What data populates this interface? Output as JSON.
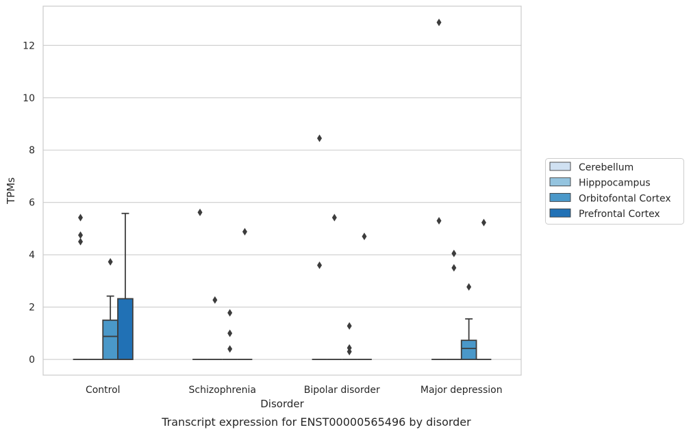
{
  "chart_data": {
    "type": "box",
    "caption": "Transcript expression for ENST00000565496 by disorder",
    "xlabel": "Disorder",
    "ylabel": "TPMs",
    "ylim": [
      -0.6,
      13.5
    ],
    "yticks": [
      0,
      2,
      4,
      6,
      8,
      10,
      12
    ],
    "grid": true,
    "legend_position": "right",
    "categories": [
      "Control",
      "Schizophrenia",
      "Bipolar disorder",
      "Major depression"
    ],
    "series": [
      {
        "name": "Cerebellum",
        "color": "#d0e1f2",
        "boxes": [
          {
            "q1": 0,
            "median": 0,
            "q3": 0,
            "whisker_low": 0,
            "whisker_high": 0,
            "outliers": [
              4.5,
              4.75,
              5.42
            ]
          },
          {
            "q1": 0,
            "median": 0,
            "q3": 0,
            "whisker_low": 0,
            "whisker_high": 0,
            "outliers": [
              5.62
            ]
          },
          {
            "q1": 0,
            "median": 0,
            "q3": 0,
            "whisker_low": 0,
            "whisker_high": 0,
            "outliers": [
              3.6,
              8.45
            ]
          },
          {
            "q1": 0,
            "median": 0,
            "q3": 0,
            "whisker_low": 0,
            "whisker_high": 0,
            "outliers": [
              5.3,
              12.88
            ]
          }
        ]
      },
      {
        "name": "Hipppocampus",
        "color": "#94c4df",
        "boxes": [
          {
            "q1": 0,
            "median": 0,
            "q3": 0,
            "whisker_low": 0,
            "whisker_high": 0,
            "outliers": []
          },
          {
            "q1": 0,
            "median": 0,
            "q3": 0,
            "whisker_low": 0,
            "whisker_high": 0,
            "outliers": [
              2.27
            ]
          },
          {
            "q1": 0,
            "median": 0,
            "q3": 0,
            "whisker_low": 0,
            "whisker_high": 0,
            "outliers": [
              5.42
            ]
          },
          {
            "q1": 0,
            "median": 0,
            "q3": 0,
            "whisker_low": 0,
            "whisker_high": 0,
            "outliers": [
              3.5,
              4.05
            ]
          }
        ]
      },
      {
        "name": "Orbitofontal Cortex",
        "color": "#4a98c9",
        "boxes": [
          {
            "q1": 0,
            "median": 0.88,
            "q3": 1.5,
            "whisker_low": 0,
            "whisker_high": 2.42,
            "outliers": [
              3.73
            ]
          },
          {
            "q1": 0,
            "median": 0,
            "q3": 0,
            "whisker_low": 0,
            "whisker_high": 0,
            "outliers": [
              0.4,
              1.0,
              1.78
            ]
          },
          {
            "q1": 0,
            "median": 0,
            "q3": 0,
            "whisker_low": 0,
            "whisker_high": 0,
            "outliers": [
              0.3,
              0.44,
              1.28
            ]
          },
          {
            "q1": 0,
            "median": 0.42,
            "q3": 0.73,
            "whisker_low": 0,
            "whisker_high": 1.55,
            "outliers": [
              2.77
            ]
          }
        ]
      },
      {
        "name": "Prefrontal Cortex",
        "color": "#2171b5",
        "boxes": [
          {
            "q1": 0,
            "median": 0,
            "q3": 2.32,
            "whisker_low": 0,
            "whisker_high": 5.58,
            "outliers": []
          },
          {
            "q1": 0,
            "median": 0,
            "q3": 0,
            "whisker_low": 0,
            "whisker_high": 0,
            "outliers": [
              4.88
            ]
          },
          {
            "q1": 0,
            "median": 0,
            "q3": 0,
            "whisker_low": 0,
            "whisker_high": 0,
            "outliers": [
              4.7
            ]
          },
          {
            "q1": 0,
            "median": 0,
            "q3": 0,
            "whisker_low": 0,
            "whisker_high": 0,
            "outliers": [
              5.23
            ]
          }
        ]
      }
    ]
  }
}
